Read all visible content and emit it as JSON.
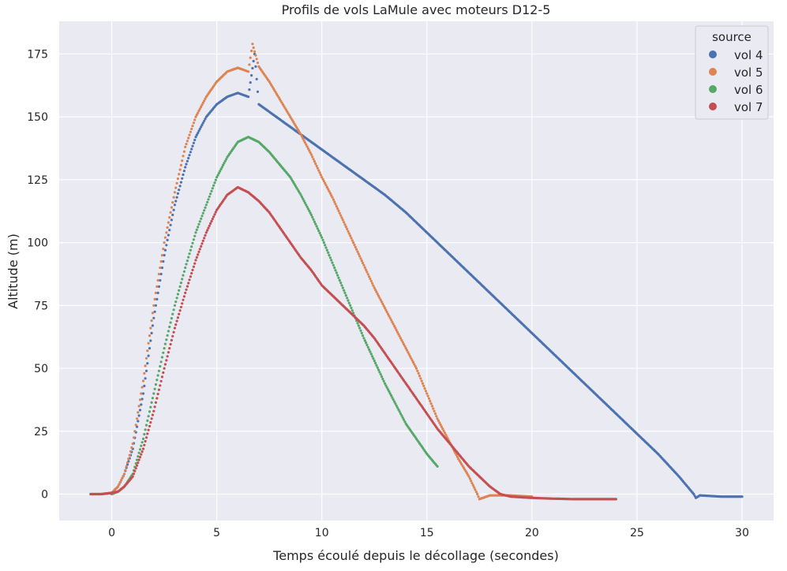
{
  "chart_data": {
    "type": "scatter",
    "title": "Profils de vols LaMule avec moteurs D12-5",
    "xlabel": "Temps écoulé depuis le décollage (secondes)",
    "ylabel": "Altitude (m)",
    "xlim": [
      -2.5,
      31.5
    ],
    "ylim": [
      -10.5,
      188
    ],
    "xticks": [
      0,
      5,
      10,
      15,
      20,
      25,
      30
    ],
    "yticks": [
      0,
      25,
      50,
      75,
      100,
      125,
      150,
      175
    ],
    "grid": true,
    "legend": {
      "title": "source",
      "placement": "top-right"
    },
    "series": [
      {
        "name": "vol 4",
        "color": "#4c72b0",
        "points": [
          [
            -1,
            0
          ],
          [
            -0.5,
            0
          ],
          [
            0,
            0.5
          ],
          [
            0.3,
            3
          ],
          [
            0.6,
            8
          ],
          [
            1,
            18
          ],
          [
            1.5,
            40
          ],
          [
            2,
            70
          ],
          [
            2.5,
            95
          ],
          [
            3,
            115
          ],
          [
            3.5,
            130
          ],
          [
            4,
            142
          ],
          [
            4.5,
            150
          ],
          [
            5,
            155
          ],
          [
            5.5,
            158
          ],
          [
            6,
            159.5
          ],
          [
            6.5,
            158
          ],
          [
            6.8,
            175
          ],
          [
            7,
            155
          ],
          [
            7.5,
            152
          ],
          [
            8,
            149
          ],
          [
            8.5,
            146
          ],
          [
            9,
            143
          ],
          [
            9.5,
            140
          ],
          [
            10,
            137
          ],
          [
            11,
            131
          ],
          [
            12,
            125
          ],
          [
            13,
            119
          ],
          [
            14,
            112
          ],
          [
            15,
            104
          ],
          [
            16,
            96
          ],
          [
            17,
            88
          ],
          [
            18,
            80
          ],
          [
            19,
            72
          ],
          [
            20,
            64
          ],
          [
            21,
            56
          ],
          [
            22,
            48
          ],
          [
            23,
            40
          ],
          [
            24,
            32
          ],
          [
            25,
            24
          ],
          [
            26,
            16
          ],
          [
            27,
            7
          ],
          [
            27.7,
            0
          ],
          [
            27.8,
            -1.5
          ],
          [
            28,
            -0.5
          ],
          [
            29,
            -1
          ],
          [
            30,
            -1
          ]
        ]
      },
      {
        "name": "vol 5",
        "color": "#dd8452",
        "points": [
          [
            -1,
            0
          ],
          [
            -0.5,
            0
          ],
          [
            0,
            0.5
          ],
          [
            0.3,
            3
          ],
          [
            0.6,
            8
          ],
          [
            1,
            20
          ],
          [
            1.5,
            45
          ],
          [
            2,
            75
          ],
          [
            2.5,
            100
          ],
          [
            3,
            120
          ],
          [
            3.5,
            138
          ],
          [
            4,
            150
          ],
          [
            4.5,
            158
          ],
          [
            5,
            164
          ],
          [
            5.5,
            168
          ],
          [
            6,
            169.5
          ],
          [
            6.5,
            168
          ],
          [
            6.7,
            179
          ],
          [
            7,
            170
          ],
          [
            7.5,
            164
          ],
          [
            8,
            157
          ],
          [
            8.5,
            150
          ],
          [
            9,
            143
          ],
          [
            9.5,
            135
          ],
          [
            10,
            126
          ],
          [
            10.5,
            118
          ],
          [
            11,
            109
          ],
          [
            11.5,
            100
          ],
          [
            12,
            91
          ],
          [
            12.5,
            82
          ],
          [
            13,
            74
          ],
          [
            13.5,
            66
          ],
          [
            14,
            58
          ],
          [
            14.5,
            50
          ],
          [
            15,
            40
          ],
          [
            15.5,
            30
          ],
          [
            16,
            22
          ],
          [
            16.5,
            14
          ],
          [
            17,
            7
          ],
          [
            17.4,
            0
          ],
          [
            17.5,
            -2
          ],
          [
            18,
            -0.5
          ],
          [
            19,
            -0.5
          ],
          [
            20,
            -1
          ]
        ]
      },
      {
        "name": "vol 6",
        "color": "#55a868",
        "points": [
          [
            0,
            0
          ],
          [
            0.3,
            1
          ],
          [
            0.6,
            3
          ],
          [
            1,
            8
          ],
          [
            1.5,
            22
          ],
          [
            2,
            40
          ],
          [
            2.5,
            58
          ],
          [
            3,
            75
          ],
          [
            3.5,
            90
          ],
          [
            4,
            104
          ],
          [
            4.5,
            115
          ],
          [
            5,
            126
          ],
          [
            5.5,
            134
          ],
          [
            6,
            140
          ],
          [
            6.5,
            142
          ],
          [
            7,
            140
          ],
          [
            7.5,
            136
          ],
          [
            8,
            131
          ],
          [
            8.5,
            126
          ],
          [
            9,
            119
          ],
          [
            9.5,
            111
          ],
          [
            10,
            102
          ],
          [
            10.5,
            92
          ],
          [
            11,
            82
          ],
          [
            11.5,
            72
          ],
          [
            12,
            62
          ],
          [
            12.5,
            53
          ],
          [
            13,
            44
          ],
          [
            13.5,
            36
          ],
          [
            14,
            28
          ],
          [
            14.5,
            22
          ],
          [
            15,
            16
          ],
          [
            15.5,
            11
          ]
        ]
      },
      {
        "name": "vol 7",
        "color": "#c44e52",
        "points": [
          [
            -1,
            0
          ],
          [
            -0.5,
            0
          ],
          [
            0,
            0.5
          ],
          [
            0.3,
            1
          ],
          [
            0.6,
            3
          ],
          [
            1,
            7
          ],
          [
            1.5,
            18
          ],
          [
            2,
            33
          ],
          [
            2.5,
            50
          ],
          [
            3,
            66
          ],
          [
            3.5,
            80
          ],
          [
            4,
            93
          ],
          [
            4.5,
            104
          ],
          [
            5,
            113
          ],
          [
            5.5,
            119
          ],
          [
            6,
            122
          ],
          [
            6.5,
            120
          ],
          [
            7,
            116.5
          ],
          [
            7.5,
            112
          ],
          [
            8,
            106
          ],
          [
            8.5,
            100
          ],
          [
            9,
            94
          ],
          [
            9.5,
            89
          ],
          [
            10,
            83
          ],
          [
            10.5,
            79
          ],
          [
            11,
            75
          ],
          [
            11.5,
            71
          ],
          [
            12,
            67
          ],
          [
            12.5,
            62
          ],
          [
            13,
            56
          ],
          [
            13.5,
            50
          ],
          [
            14,
            44
          ],
          [
            14.5,
            38
          ],
          [
            15,
            32
          ],
          [
            15.5,
            26
          ],
          [
            16,
            21
          ],
          [
            16.5,
            16
          ],
          [
            17,
            11
          ],
          [
            17.5,
            7
          ],
          [
            18,
            3
          ],
          [
            18.5,
            0
          ],
          [
            19,
            -1
          ],
          [
            20,
            -1.5
          ],
          [
            21,
            -1.8
          ],
          [
            22,
            -2
          ],
          [
            23,
            -2
          ],
          [
            24,
            -2
          ]
        ]
      }
    ]
  }
}
